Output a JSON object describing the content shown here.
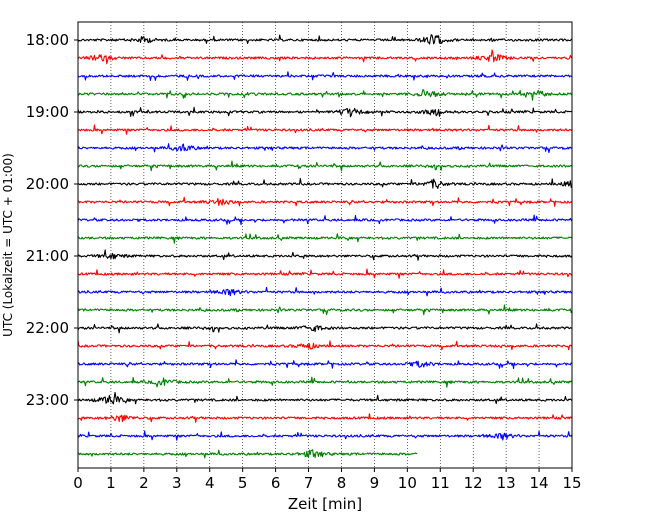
{
  "chart_data": {
    "type": "line",
    "title": "",
    "xlabel": "Zeit  [min]",
    "ylabel": "UTC (Lokalzeit = UTC + 01:00)",
    "xlim": [
      0,
      15
    ],
    "x_ticks": [
      "0",
      "1",
      "2",
      "3",
      "4",
      "5",
      "6",
      "7",
      "8",
      "9",
      "10",
      "11",
      "12",
      "13",
      "14",
      "15"
    ],
    "y_tick_labels": [
      "18:00",
      "19:00",
      "20:00",
      "21:00",
      "22:00",
      "23:00"
    ],
    "grid": "vertical dotted lines at each minute",
    "row_minutes": 15,
    "trace_colors": [
      "#000000",
      "#ff0000",
      "#0000ff",
      "#008000"
    ],
    "rows": [
      {
        "start": "18:00",
        "color": "#000000",
        "end_min": 15
      },
      {
        "start": "18:15",
        "color": "#ff0000",
        "end_min": 15
      },
      {
        "start": "18:30",
        "color": "#0000ff",
        "end_min": 15
      },
      {
        "start": "18:45",
        "color": "#008000",
        "end_min": 15
      },
      {
        "start": "19:00",
        "color": "#000000",
        "end_min": 15
      },
      {
        "start": "19:15",
        "color": "#ff0000",
        "end_min": 15
      },
      {
        "start": "19:30",
        "color": "#0000ff",
        "end_min": 15
      },
      {
        "start": "19:45",
        "color": "#008000",
        "end_min": 15
      },
      {
        "start": "20:00",
        "color": "#000000",
        "end_min": 15
      },
      {
        "start": "20:15",
        "color": "#ff0000",
        "end_min": 15
      },
      {
        "start": "20:30",
        "color": "#0000ff",
        "end_min": 15
      },
      {
        "start": "20:45",
        "color": "#008000",
        "end_min": 15
      },
      {
        "start": "21:00",
        "color": "#000000",
        "end_min": 15
      },
      {
        "start": "21:15",
        "color": "#ff0000",
        "end_min": 15
      },
      {
        "start": "21:30",
        "color": "#0000ff",
        "end_min": 15
      },
      {
        "start": "21:45",
        "color": "#008000",
        "end_min": 15
      },
      {
        "start": "22:00",
        "color": "#000000",
        "end_min": 15
      },
      {
        "start": "22:15",
        "color": "#ff0000",
        "end_min": 15
      },
      {
        "start": "22:30",
        "color": "#0000ff",
        "end_min": 15
      },
      {
        "start": "22:45",
        "color": "#008000",
        "end_min": 15
      },
      {
        "start": "23:00",
        "color": "#000000",
        "end_min": 15
      },
      {
        "start": "23:15",
        "color": "#ff0000",
        "end_min": 15
      },
      {
        "start": "23:30",
        "color": "#0000ff",
        "end_min": 15
      },
      {
        "start": "23:45",
        "color": "#008000",
        "end_min": 10.3
      }
    ],
    "events": [
      {
        "start": "18:00",
        "minute": 10.8,
        "level": 1.0
      },
      {
        "start": "18:00",
        "minute": 2.0,
        "level": 0.5
      },
      {
        "start": "18:15",
        "minute": 12.6,
        "level": 0.8
      },
      {
        "start": "18:15",
        "minute": 0.7,
        "level": 0.6
      },
      {
        "start": "18:45",
        "minute": 10.6,
        "level": 0.7
      },
      {
        "start": "18:45",
        "minute": 14.0,
        "level": 0.5
      },
      {
        "start": "19:00",
        "minute": 8.3,
        "level": 0.7
      },
      {
        "start": "19:00",
        "minute": 10.8,
        "level": 0.6
      },
      {
        "start": "19:30",
        "minute": 3.2,
        "level": 0.6
      },
      {
        "start": "20:00",
        "minute": 10.8,
        "level": 0.6
      },
      {
        "start": "20:00",
        "minute": 15.0,
        "level": 0.5
      },
      {
        "start": "20:15",
        "minute": 4.3,
        "level": 0.5
      },
      {
        "start": "21:00",
        "minute": 1.0,
        "level": 0.5
      },
      {
        "start": "21:30",
        "minute": 4.6,
        "level": 0.5
      },
      {
        "start": "22:00",
        "minute": 7.1,
        "level": 0.6
      },
      {
        "start": "22:15",
        "minute": 7.0,
        "level": 0.5
      },
      {
        "start": "22:30",
        "minute": 10.4,
        "level": 0.5
      },
      {
        "start": "22:45",
        "minute": 2.6,
        "level": 0.5
      },
      {
        "start": "23:00",
        "minute": 1.0,
        "level": 0.9
      },
      {
        "start": "23:15",
        "minute": 1.3,
        "level": 0.6
      },
      {
        "start": "23:30",
        "minute": 12.9,
        "level": 0.5
      },
      {
        "start": "23:45",
        "minute": 7.1,
        "level": 0.6
      }
    ]
  }
}
